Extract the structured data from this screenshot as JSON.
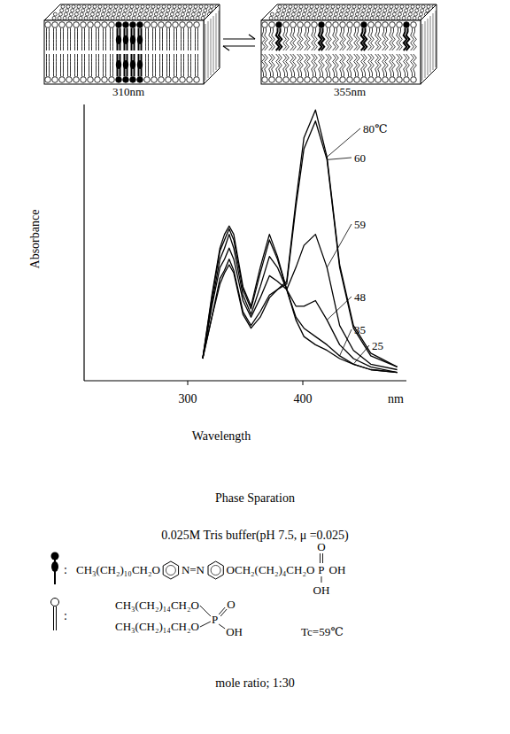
{
  "chart_data": {
    "type": "line",
    "xlabel": "Wavelength",
    "ylabel": "Absorbance",
    "x_unit_label": "nm",
    "x": [
      313,
      321,
      328,
      332,
      336,
      340,
      348,
      355,
      363,
      371,
      378,
      386,
      394,
      401,
      411,
      421,
      432,
      444,
      459,
      482
    ],
    "xlim": [
      210,
      490
    ],
    "xticks": [
      300,
      400
    ],
    "ylim": [
      0,
      1
    ],
    "tick_labels": "x",
    "series": [
      {
        "name": "80℃",
        "color": "#000000",
        "values": [
          0.08,
          0.23,
          0.35,
          0.39,
          0.42,
          0.39,
          0.24,
          0.19,
          0.23,
          0.3,
          0.33,
          0.36,
          0.65,
          0.88,
          0.98,
          0.81,
          0.42,
          0.2,
          0.1,
          0.05
        ]
      },
      {
        "name": "60",
        "color": "#000000",
        "values": [
          0.08,
          0.23,
          0.37,
          0.4,
          0.44,
          0.4,
          0.25,
          0.2,
          0.25,
          0.31,
          0.33,
          0.35,
          0.63,
          0.84,
          0.94,
          0.8,
          0.41,
          0.19,
          0.09,
          0.05
        ]
      },
      {
        "name": "59",
        "color": "#000000",
        "values": [
          0.08,
          0.27,
          0.41,
          0.44,
          0.48,
          0.44,
          0.29,
          0.23,
          0.3,
          0.38,
          0.36,
          0.33,
          0.41,
          0.49,
          0.53,
          0.41,
          0.2,
          0.11,
          0.06,
          0.04
        ]
      },
      {
        "name": "48",
        "color": "#000000",
        "values": [
          0.08,
          0.28,
          0.44,
          0.48,
          0.53,
          0.48,
          0.31,
          0.24,
          0.34,
          0.45,
          0.41,
          0.33,
          0.27,
          0.27,
          0.29,
          0.22,
          0.13,
          0.08,
          0.05,
          0.03
        ]
      },
      {
        "name": "35",
        "color": "#000000",
        "values": [
          0.08,
          0.3,
          0.47,
          0.51,
          0.55,
          0.51,
          0.33,
          0.26,
          0.39,
          0.51,
          0.44,
          0.33,
          0.23,
          0.19,
          0.16,
          0.13,
          0.09,
          0.06,
          0.04,
          0.03
        ]
      },
      {
        "name": "25",
        "color": "#000000",
        "values": [
          0.08,
          0.31,
          0.48,
          0.53,
          0.56,
          0.53,
          0.34,
          0.27,
          0.41,
          0.53,
          0.45,
          0.33,
          0.22,
          0.16,
          0.13,
          0.11,
          0.08,
          0.06,
          0.04,
          0.03
        ]
      }
    ]
  },
  "figure": {
    "cartoon": {
      "left_label": "310nm",
      "right_label": "355nm"
    },
    "phase": "Phase Sparation",
    "buffer": "0.025M Tris buffer(pH 7.5, μ =0.025)",
    "azo_lipid": {
      "tail": "CH₃(CH₂)₁₀CH₂O",
      "link": "N=N",
      "spacer": "OCH₂(CH₂)₄CH₂O",
      "p": "P",
      "o": "O",
      "oh1": "OH",
      "oh2": "OH"
    },
    "matrix_lipid": {
      "chain1": "CH₃(CH₂)₁₄CH₂O",
      "chain2": "CH₃(CH₂)₁₄CH₂O",
      "p": "P",
      "o": "O",
      "oh": "OH",
      "tc": "Tc=59℃"
    },
    "mole_ratio": "mole ratio; 1:30"
  }
}
